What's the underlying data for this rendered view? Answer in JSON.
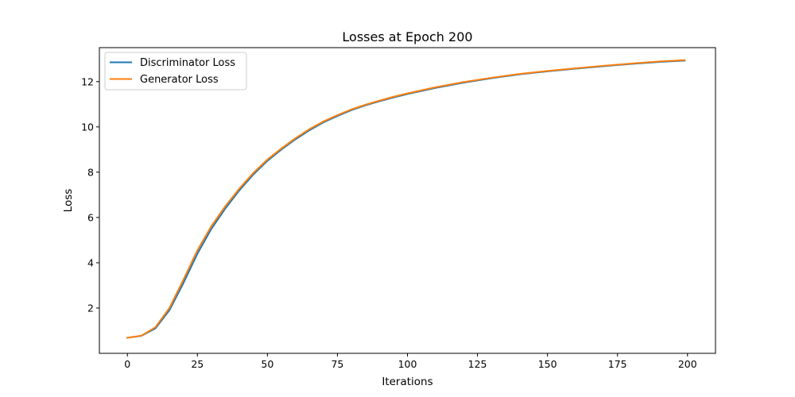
{
  "chart_data": {
    "type": "line",
    "title": "Losses at Epoch 200",
    "xlabel": "Iterations",
    "ylabel": "Loss",
    "xlim": [
      -10,
      210
    ],
    "ylim": [
      0.0,
      13.5
    ],
    "xticks": [
      0,
      25,
      50,
      75,
      100,
      125,
      150,
      175,
      200
    ],
    "yticks": [
      2,
      4,
      6,
      8,
      10,
      12
    ],
    "grid": false,
    "legend_position": "upper-left",
    "x": [
      0,
      5,
      10,
      15,
      20,
      25,
      30,
      35,
      40,
      45,
      50,
      55,
      60,
      65,
      70,
      75,
      80,
      85,
      90,
      95,
      100,
      110,
      120,
      130,
      140,
      150,
      160,
      170,
      180,
      190,
      199
    ],
    "series": [
      {
        "name": "Discriminator Loss",
        "color": "#1f77b4",
        "values": [
          0.69,
          0.77,
          1.1,
          1.9,
          3.1,
          4.4,
          5.5,
          6.4,
          7.2,
          7.9,
          8.5,
          9.0,
          9.45,
          9.85,
          10.2,
          10.48,
          10.74,
          10.95,
          11.13,
          11.3,
          11.45,
          11.72,
          11.95,
          12.15,
          12.32,
          12.45,
          12.57,
          12.68,
          12.78,
          12.87,
          12.93
        ]
      },
      {
        "name": "Generator Loss",
        "color": "#ff7f0e",
        "values": [
          0.69,
          0.78,
          1.15,
          2.0,
          3.25,
          4.55,
          5.62,
          6.5,
          7.28,
          7.97,
          8.56,
          9.05,
          9.5,
          9.9,
          10.24,
          10.52,
          10.77,
          10.98,
          11.16,
          11.33,
          11.48,
          11.75,
          11.98,
          12.17,
          12.34,
          12.47,
          12.59,
          12.7,
          12.8,
          12.89,
          12.95
        ]
      }
    ]
  }
}
